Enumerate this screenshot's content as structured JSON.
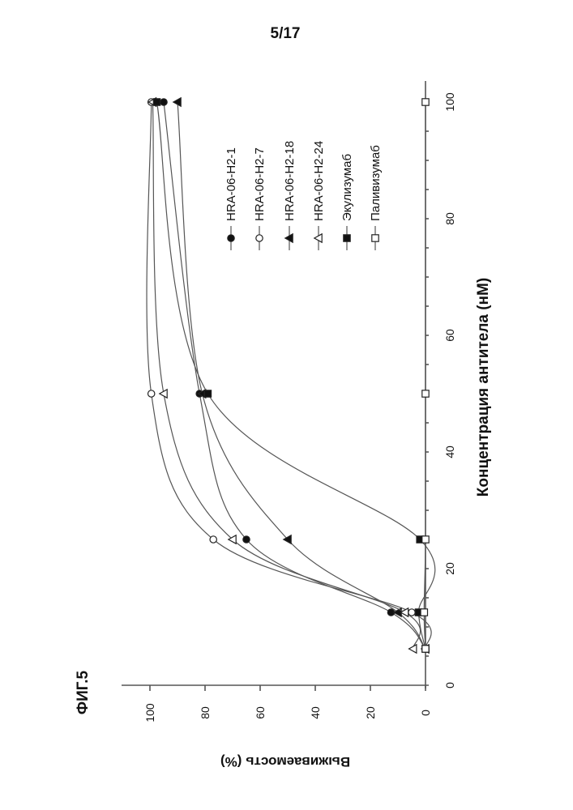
{
  "page_number": "5/17",
  "figure_label": "ФИГ.5",
  "chart_data": {
    "type": "line",
    "title": "",
    "xlabel": "Концентрация антитела (нМ)",
    "ylabel": "Выживаемость (%)",
    "xlim": [
      0,
      100
    ],
    "ylim": [
      0,
      100
    ],
    "xticks": [
      "0",
      "20",
      "40",
      "60",
      "80",
      "100"
    ],
    "yticks": [
      "0",
      "20",
      "40",
      "60",
      "80",
      "100"
    ],
    "xtick_values": [
      0,
      20,
      40,
      60,
      80,
      100
    ],
    "ytick_values": [
      0,
      20,
      40,
      60,
      80,
      100
    ],
    "grid": false,
    "orientation": "rotated 90° counter-clockwise on the page",
    "legend_position": "top-right",
    "x": [
      6.25,
      12.5,
      25,
      50,
      100
    ],
    "series": [
      {
        "name": "HRA-06-H2-1",
        "marker": "filled-circle",
        "values": [
          0,
          12.5,
          65,
          82,
          95
        ]
      },
      {
        "name": "HRA-06-H2-7",
        "marker": "open-circle",
        "values": [
          0,
          5,
          77,
          99.5,
          99.5
        ]
      },
      {
        "name": "HRA-06-H2-18",
        "marker": "filled-triangle",
        "values": [
          0,
          10,
          50,
          81,
          90
        ]
      },
      {
        "name": "HRA-06-H2-24",
        "marker": "open-triangle",
        "values": [
          4.5,
          7.5,
          70,
          95,
          99
        ]
      },
      {
        "name": "Экулизумаб",
        "marker": "filled-square",
        "values": [
          0,
          2.5,
          2,
          79,
          97.5
        ]
      },
      {
        "name": "Паливизумаб",
        "marker": "open-square",
        "values": [
          0,
          0.5,
          0,
          0,
          0
        ]
      }
    ]
  }
}
